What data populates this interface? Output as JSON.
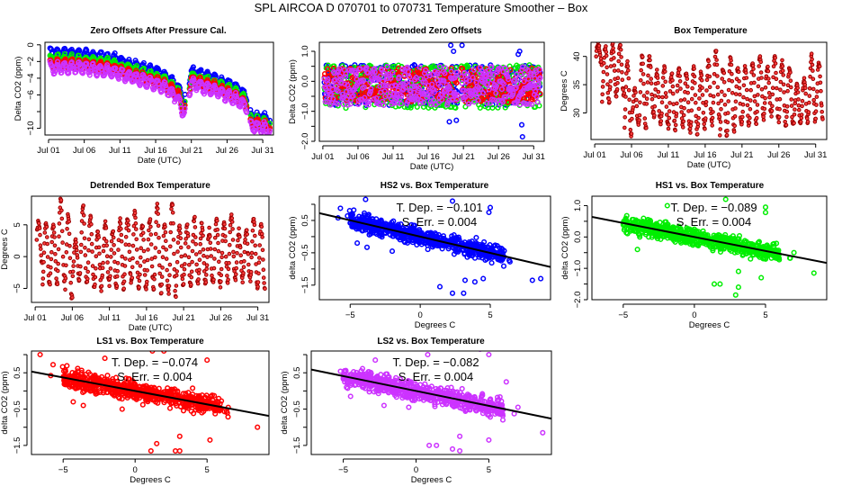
{
  "figure_title": "SPL   AIRCOA D   070701 to 070731   Temperature Smoother – Box",
  "chart_data": [
    {
      "id": "zero-offsets",
      "type": "scatter",
      "title": "Zero Offsets After Pressure Cal.",
      "xlabel": "Date (UTC)",
      "ylabel": "Delta CO2 (ppm)",
      "xticks": [
        "Jul 01",
        "Jul 06",
        "Jul 11",
        "Jul 16",
        "Jul 21",
        "Jul 26",
        "Jul 31"
      ],
      "xlim_days": [
        0.5,
        32.5
      ],
      "ylim": [
        -10.8,
        0.3
      ],
      "yticks": [
        0,
        -2,
        -4,
        -6,
        -8,
        -10
      ],
      "ytick_labels": [
        "0",
        "-2",
        "-4",
        "-6",
        "",
        "-10"
      ],
      "series": [
        {
          "name": "HS2",
          "color": "#0000ff",
          "trend": [
            [
              1.2,
              -1.0
            ],
            [
              5,
              -1.1
            ],
            [
              10,
              -1.6
            ],
            [
              13,
              -2.5
            ],
            [
              17,
              -3.5
            ],
            [
              19,
              -4.8
            ],
            [
              20,
              -6.8
            ],
            [
              21,
              -3.2
            ],
            [
              24,
              -4.0
            ],
            [
              27,
              -5.0
            ],
            [
              28.8,
              -6.2
            ],
            [
              29.2,
              -8.5
            ],
            [
              32,
              -9.0
            ]
          ],
          "amp": 0.5
        },
        {
          "name": "HS1",
          "color": "#00ee00",
          "trend": [
            [
              1.2,
              -1.7
            ],
            [
              5,
              -1.8
            ],
            [
              10,
              -2.3
            ],
            [
              13,
              -3.1
            ],
            [
              17,
              -4.1
            ],
            [
              19,
              -5.4
            ],
            [
              20,
              -7.4
            ],
            [
              21,
              -3.8
            ],
            [
              24,
              -4.6
            ],
            [
              27,
              -5.6
            ],
            [
              28.8,
              -6.8
            ],
            [
              29.2,
              -9.0
            ],
            [
              32,
              -9.5
            ]
          ],
          "amp": 0.5
        },
        {
          "name": "LS1",
          "color": "#ff0000",
          "trend": [
            [
              1.2,
              -2.3
            ],
            [
              5,
              -2.3
            ],
            [
              10,
              -2.8
            ],
            [
              13,
              -3.6
            ],
            [
              17,
              -4.6
            ],
            [
              19,
              -5.8
            ],
            [
              20,
              -7.8
            ],
            [
              21,
              -4.2
            ],
            [
              24,
              -5.0
            ],
            [
              27,
              -6.0
            ],
            [
              28.8,
              -7.2
            ],
            [
              29.2,
              -9.3
            ],
            [
              32,
              -9.8
            ]
          ],
          "amp": 0.5
        },
        {
          "name": "LS2",
          "color": "#cc33ff",
          "trend": [
            [
              1.2,
              -2.8
            ],
            [
              5,
              -2.7
            ],
            [
              10,
              -3.2
            ],
            [
              13,
              -4.0
            ],
            [
              17,
              -5.0
            ],
            [
              19,
              -6.3
            ],
            [
              20,
              -8.2
            ],
            [
              21,
              -4.7
            ],
            [
              24,
              -5.4
            ],
            [
              27,
              -6.4
            ],
            [
              28.8,
              -7.5
            ],
            [
              29.2,
              -9.7
            ],
            [
              32,
              -10.2
            ]
          ],
          "amp": 0.6
        }
      ]
    },
    {
      "id": "detrended-zero-offsets",
      "type": "scatter",
      "title": "Detrended Zero Offsets",
      "xlabel": "Date (UTC)",
      "ylabel": "Delta CO2 (ppm)",
      "xticks": [
        "Jul 01",
        "Jul 06",
        "Jul 11",
        "Jul 16",
        "Jul 21",
        "Jul 26",
        "Jul 31"
      ],
      "xlim_days": [
        0.5,
        32.5
      ],
      "ylim": [
        -2.0,
        1.3
      ],
      "yticks": [
        1.0,
        0.5,
        0.0,
        -0.5,
        -1.0,
        -1.5,
        -2.0
      ],
      "ytick_labels": [
        "1.0",
        "",
        "0.0",
        "",
        "-1.0",
        "",
        "-2.0"
      ],
      "series": [
        {
          "name": "HS2",
          "color": "#0000ff",
          "spread": [
            -0.8,
            0.55
          ]
        },
        {
          "name": "HS1",
          "color": "#00ee00",
          "spread": [
            -0.9,
            0.55
          ]
        },
        {
          "name": "LS1",
          "color": "#ff0000",
          "spread": [
            -0.7,
            0.45
          ]
        },
        {
          "name": "LS2",
          "color": "#cc33ff",
          "spread": [
            -0.8,
            0.5
          ]
        }
      ],
      "outliers": [
        [
          19.2,
          1.2
        ],
        [
          19.6,
          1.0
        ],
        [
          20.8,
          1.2
        ],
        [
          19,
          -1.35
        ],
        [
          20,
          -1.3
        ],
        [
          29.3,
          -1.45
        ],
        [
          29.4,
          -1.85
        ],
        [
          28.8,
          0.9
        ],
        [
          29.0,
          1.0
        ]
      ]
    },
    {
      "id": "box-temperature",
      "type": "scatter",
      "title": "Box Temperature",
      "xlabel": "Date (UTC)",
      "ylabel": "Degrees C",
      "xticks": [
        "Jul 01",
        "Jul 06",
        "Jul 11",
        "Jul 16",
        "Jul 21",
        "Jul 26",
        "Jul 31"
      ],
      "xlim_days": [
        0.5,
        32.5
      ],
      "ylim": [
        25.3,
        42.5
      ],
      "yticks": [
        40,
        35,
        30
      ],
      "ytick_labels": [
        "40",
        "35",
        "30"
      ],
      "series": [
        {
          "name": "Box",
          "color": "#cc0000",
          "daily_max": [
            42,
            42,
            42,
            42,
            39,
            34,
            40,
            40,
            37,
            38,
            37,
            38,
            37,
            38,
            37,
            39,
            41,
            38,
            40,
            38,
            38,
            39,
            40,
            38,
            40,
            39,
            38,
            35,
            36,
            40,
            39,
            37
          ],
          "daily_min": [
            39,
            32,
            33,
            33,
            26,
            28,
            27,
            30,
            28,
            28,
            27,
            28,
            27,
            26,
            27,
            28,
            29,
            26,
            27,
            28,
            28,
            28,
            29,
            30,
            29,
            28,
            28,
            28,
            28,
            29,
            29,
            30
          ]
        }
      ]
    },
    {
      "id": "detrended-box-temperature",
      "type": "scatter",
      "title": "Detrended Box Temperature",
      "xlabel": "Date (UTC)",
      "ylabel": "Degrees C",
      "xticks": [
        "Jul 01",
        "Jul 06",
        "Jul 11",
        "Jul 16",
        "Jul 21",
        "Jul 26",
        "Jul 31"
      ],
      "xlim_days": [
        0.5,
        32.5
      ],
      "ylim": [
        -7.2,
        9.5
      ],
      "yticks": [
        5,
        0,
        -5
      ],
      "ytick_labels": [
        "5",
        "0",
        "-5"
      ],
      "series": [
        {
          "name": "Box",
          "color": "#cc0000",
          "daily_max": [
            5.5,
            5.5,
            5,
            9,
            6.5,
            2.5,
            8,
            6.5,
            4,
            5,
            4,
            6,
            6,
            7,
            5,
            6,
            8,
            5,
            8.5,
            5,
            5,
            6,
            5,
            4,
            6,
            5.5,
            6.5,
            4,
            4,
            6,
            5,
            3
          ],
          "daily_min": [
            -1,
            -4.5,
            -4,
            -4,
            -6.5,
            -3.5,
            -4,
            -5,
            -5,
            -4,
            -5,
            -5,
            -4,
            -4.5,
            -5,
            -5,
            -5.5,
            -5.5,
            -6.5,
            -4.5,
            -4.5,
            -4.5,
            -4,
            -4,
            -4.5,
            -4,
            -3.5,
            -3.5,
            -3.5,
            -4.5,
            -5,
            -4.5
          ]
        }
      ]
    },
    {
      "id": "hs2-vs-box",
      "type": "scatter",
      "title": "HS2 vs. Box Temperature",
      "xlabel": "Degrees C",
      "ylabel": "delta CO2 (ppm)",
      "xlim": [
        -7.2,
        9.3
      ],
      "ylim": [
        -1.95,
        1.25
      ],
      "xticks": [
        -5,
        0,
        5
      ],
      "yticks": [
        1.0,
        0.5,
        0.0,
        -0.5,
        -1.0,
        -1.5
      ],
      "ytick_labels": [
        "",
        "0.5",
        "",
        "-0.5",
        "",
        "-1.5"
      ],
      "color": "#0000ff",
      "slope": -0.101,
      "annotation": {
        "dep_label": "T. Dep. =  −0.101",
        "err_label": "S. Err. =  0.004"
      },
      "outliers": [
        [
          -3.9,
          1.15
        ],
        [
          2.3,
          1.1
        ],
        [
          5.0,
          0.9
        ],
        [
          4.9,
          0.75
        ],
        [
          3.1,
          -1.75
        ],
        [
          2.3,
          -1.75
        ],
        [
          3.2,
          -1.35
        ],
        [
          3.9,
          -1.4
        ],
        [
          4.5,
          -1.3
        ],
        [
          8.0,
          -1.35
        ],
        [
          8.6,
          -1.3
        ],
        [
          1.4,
          -1.55
        ],
        [
          -4.5,
          -0.2
        ],
        [
          -3.8,
          -0.33
        ],
        [
          -2.0,
          -0.45
        ]
      ]
    },
    {
      "id": "hs1-vs-box",
      "type": "scatter",
      "title": "HS1 vs. Box Temperature",
      "xlabel": "Degrees C",
      "ylabel": "delta CO2 (ppm)",
      "xlim": [
        -7.2,
        9.3
      ],
      "ylim": [
        -2.0,
        1.3
      ],
      "xticks": [
        -5,
        0,
        5
      ],
      "yticks": [
        1.0,
        0.5,
        0.0,
        -0.5,
        -1.0,
        -1.5,
        -2.0
      ],
      "ytick_labels": [
        "1.0",
        "",
        "0.0",
        "",
        "-1.0",
        "",
        "-2.0"
      ],
      "color": "#00ee00",
      "slope": -0.089,
      "annotation": {
        "dep_label": "T. Dep. =  −0.089",
        "err_label": "S. Err. =  0.004"
      },
      "outliers": [
        [
          2.2,
          1.2
        ],
        [
          -1.9,
          1.0
        ],
        [
          5.0,
          0.95
        ],
        [
          5.0,
          0.78
        ],
        [
          1.4,
          -1.5
        ],
        [
          1.8,
          -1.5
        ],
        [
          2.9,
          -1.85
        ],
        [
          3.1,
          -1.6
        ],
        [
          3.1,
          -1.1
        ],
        [
          4.7,
          -1.3
        ],
        [
          8.4,
          -1.15
        ],
        [
          -4.0,
          -0.4
        ]
      ]
    },
    {
      "id": "ls1-vs-box",
      "type": "scatter",
      "title": "LS1 vs. Box Temperature",
      "xlabel": "Degrees C",
      "ylabel": "delta CO2 (ppm)",
      "xlim": [
        -7.2,
        9.3
      ],
      "ylim": [
        -1.75,
        1.1
      ],
      "xticks": [
        -5,
        0,
        5
      ],
      "yticks": [
        1.0,
        0.5,
        0.0,
        -0.5,
        -1.0,
        -1.5
      ],
      "ytick_labels": [
        "",
        "0.5",
        "",
        "-0.5",
        "",
        "-1.5"
      ],
      "color": "#ff0000",
      "slope": -0.074,
      "annotation": {
        "dep_label": "T. Dep. =  −0.074",
        "err_label": "S. Err. =  0.004"
      },
      "outliers": [
        [
          -6.6,
          1.0
        ],
        [
          4.9,
          1.2
        ],
        [
          2.0,
          1.1
        ],
        [
          1.2,
          1.1
        ],
        [
          -2.1,
          0.9
        ],
        [
          5.0,
          0.85
        ],
        [
          1.1,
          -1.65
        ],
        [
          1.5,
          -1.45
        ],
        [
          2.8,
          -1.65
        ],
        [
          3.1,
          -1.65
        ],
        [
          3.1,
          -1.25
        ],
        [
          5.2,
          -1.35
        ],
        [
          8.5,
          -1.0
        ],
        [
          -3.6,
          -0.4
        ],
        [
          -4.3,
          -0.3
        ],
        [
          -0.9,
          -0.5
        ]
      ]
    },
    {
      "id": "ls2-vs-box",
      "type": "scatter",
      "title": "LS2 vs. Box Temperature",
      "xlabel": "Degrees C",
      "ylabel": "delta CO2 (ppm)",
      "xlim": [
        -7.2,
        9.3
      ],
      "ylim": [
        -1.75,
        1.1
      ],
      "xticks": [
        -5,
        0,
        5
      ],
      "yticks": [
        1.0,
        0.5,
        0.0,
        -0.5,
        -1.0,
        -1.5
      ],
      "ytick_labels": [
        "",
        "0.5",
        "",
        "-0.5",
        "",
        "-1.5"
      ],
      "color": "#cc33ff",
      "slope": -0.082,
      "annotation": {
        "dep_label": "T. Dep. =  −0.082",
        "err_label": "S. Err. =  0.004"
      },
      "outliers": [
        [
          4.4,
          1.15
        ],
        [
          5.0,
          1.0
        ],
        [
          0.8,
          1.0
        ],
        [
          -2.8,
          0.85
        ],
        [
          6.2,
          0.25
        ],
        [
          0.9,
          -1.5
        ],
        [
          1.4,
          -1.5
        ],
        [
          2.5,
          -1.6
        ],
        [
          3.0,
          -1.65
        ],
        [
          3.0,
          -1.25
        ],
        [
          5.0,
          -1.35
        ],
        [
          8.7,
          -1.15
        ],
        [
          -4.5,
          -0.15
        ],
        [
          -2.2,
          -0.4
        ],
        [
          -0.5,
          -0.45
        ]
      ]
    }
  ]
}
